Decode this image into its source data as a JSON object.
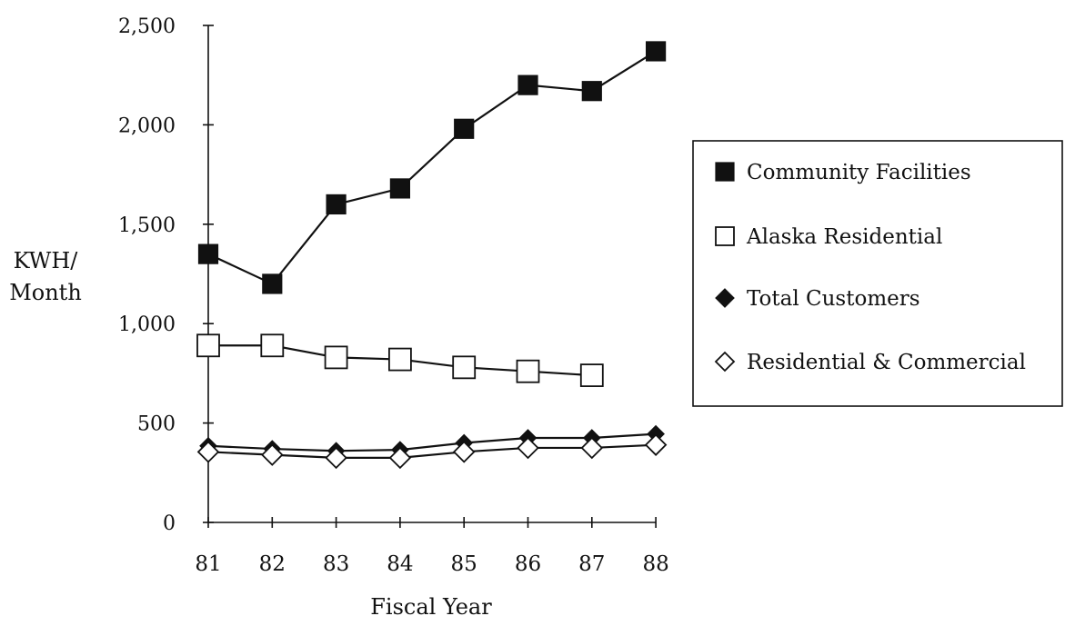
{
  "chart_data": {
    "type": "line",
    "title": "",
    "xlabel": "Fiscal Year",
    "ylabel_lines": [
      "KWH/",
      "Month"
    ],
    "x": [
      "81",
      "82",
      "83",
      "84",
      "85",
      "86",
      "87",
      "88"
    ],
    "yticks": [
      0,
      500,
      1000,
      1500,
      2000,
      2500
    ],
    "ytick_labels": [
      "0",
      "500",
      "1,000",
      "1,500",
      "2,000",
      "2,500"
    ],
    "ylim": [
      0,
      2500
    ],
    "grid": false,
    "legend_position": "right",
    "series": [
      {
        "name": "Community Facilities",
        "marker": "filled-square",
        "values": [
          1350,
          1200,
          1600,
          1680,
          1980,
          2200,
          2170,
          2370
        ]
      },
      {
        "name": "Alaska Residential",
        "marker": "open-square",
        "values": [
          890,
          890,
          830,
          820,
          780,
          760,
          740,
          null
        ]
      },
      {
        "name": "Total Customers",
        "marker": "filled-diamond",
        "values": [
          385,
          370,
          360,
          365,
          400,
          425,
          425,
          445
        ]
      },
      {
        "name": "Residential & Commercial",
        "marker": "open-diamond",
        "values": [
          355,
          340,
          325,
          325,
          355,
          375,
          375,
          390
        ]
      }
    ]
  }
}
